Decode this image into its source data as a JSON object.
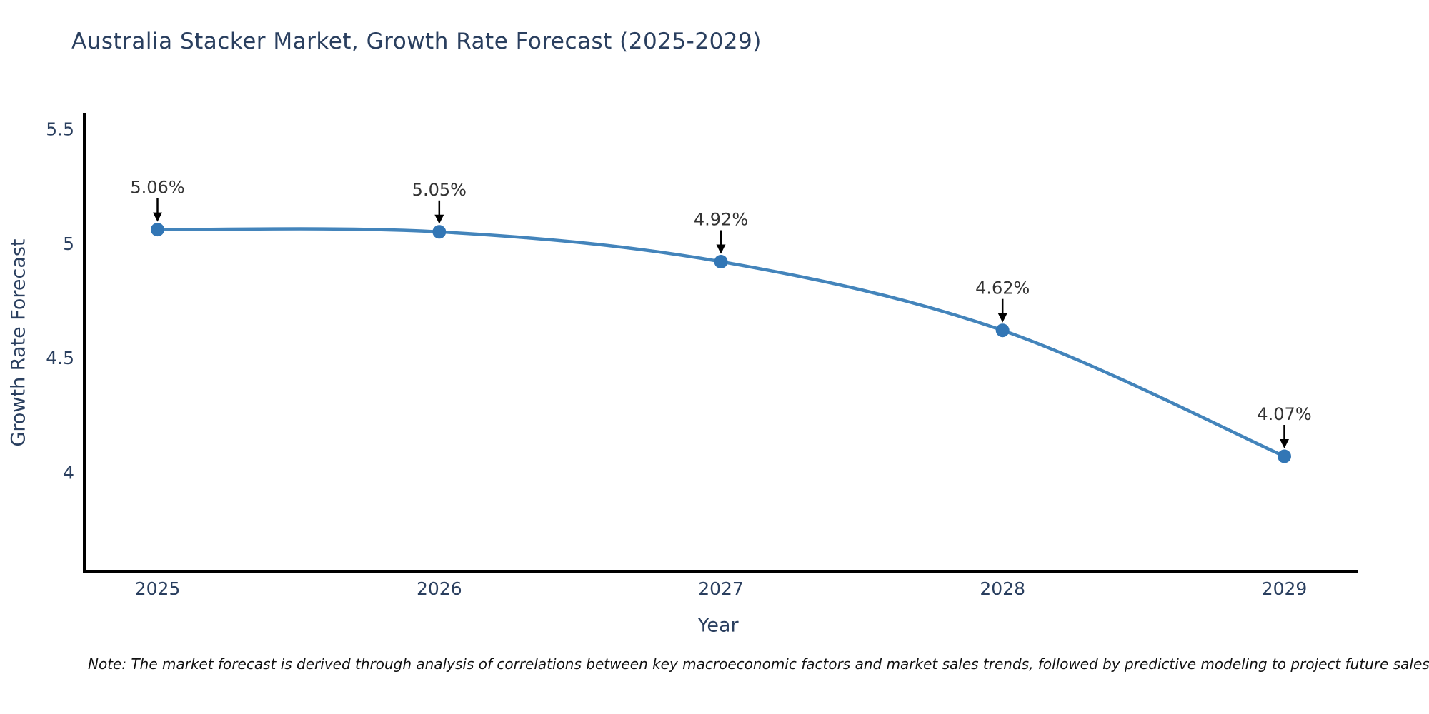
{
  "chart": {
    "note": "Note: The market forecast is derived through analysis of correlations between key macroeconomic factors and market sales trends, followed by predictive modeling to project future sales"
  },
  "chart_data": {
    "type": "line",
    "title": "Australia Stacker Market, Growth Rate Forecast (2025-2029)",
    "xlabel": "Year",
    "ylabel": "Growth Rate Forecast",
    "x": [
      2025,
      2026,
      2027,
      2028,
      2029
    ],
    "y": [
      5.06,
      5.05,
      4.92,
      4.62,
      4.07
    ],
    "point_labels": [
      "5.06%",
      "5.05%",
      "4.92%",
      "4.62%",
      "4.07%"
    ],
    "xtick_labels": [
      "2025",
      "2026",
      "2027",
      "2028",
      "2029"
    ],
    "yticks": [
      5.5,
      5,
      4.5,
      4
    ],
    "ytick_labels": [
      "5.5",
      "5",
      "4.5",
      "4"
    ],
    "xlim": [
      2024.74,
      2029.26
    ],
    "ylim": [
      3.565,
      5.57
    ],
    "grid": false,
    "legend": "none",
    "line_shape": "spline",
    "colors": {
      "line": "#4384bb",
      "marker": "#3276b5",
      "axis": "#000000",
      "tick_text": "#2a3f5f",
      "annotation_text": "#333333",
      "arrow": "#000000"
    }
  }
}
